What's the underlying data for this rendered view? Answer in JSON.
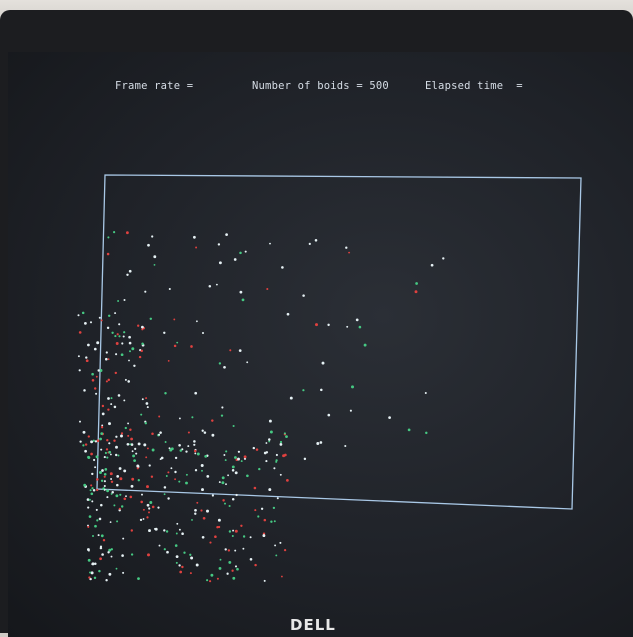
{
  "hud": {
    "frame_rate": "Frame rate =",
    "boids": "Number of boids = 500",
    "elapsed": "Elapsed time  ="
  },
  "colors": {
    "boundary": "#a9c8e6",
    "boid_white": "#e6f1f4",
    "boid_green": "#46c983",
    "boid_red": "#e0413f"
  },
  "brand": "DELL",
  "boid_count": 500
}
